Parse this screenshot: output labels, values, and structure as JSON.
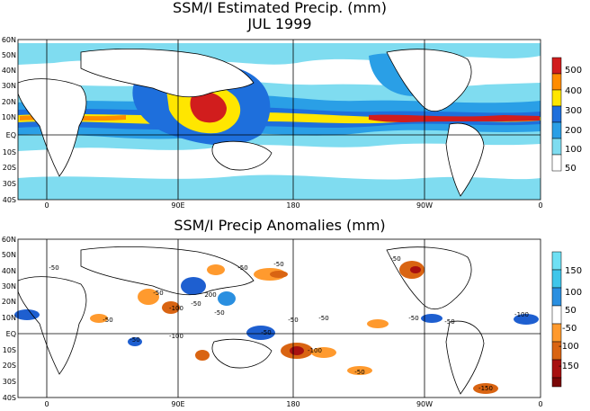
{
  "top_panel": {
    "title_line1": "SSM/I Estimated Precip. (mm)",
    "title_line2": "JUL 1999",
    "lat_labels": [
      "60N",
      "50N",
      "40N",
      "30N",
      "20N",
      "10N",
      "EQ",
      "10S",
      "20S",
      "30S",
      "40S"
    ],
    "lon_labels": [
      "0",
      "90E",
      "180",
      "90W",
      "0"
    ],
    "legend": [
      {
        "label": "500",
        "color": "#d11d1d"
      },
      {
        "label": "400",
        "color": "#ff8c00"
      },
      {
        "label": "300",
        "color": "#ffe600"
      },
      {
        "label": "200",
        "color": "#1e6fdc"
      },
      {
        "label": "100",
        "color": "#2a9fe6"
      },
      {
        "label": "50",
        "color": "#7fdcf0"
      }
    ],
    "legend_bottom_color": "#ffffff"
  },
  "bottom_panel": {
    "title": "SSM/I Precip Anomalies (mm)",
    "lat_labels": [
      "60N",
      "50N",
      "40N",
      "30N",
      "20N",
      "10N",
      "EQ",
      "10S",
      "20S",
      "30S",
      "40S"
    ],
    "lon_labels": [
      "0",
      "90E",
      "180",
      "90W",
      "0"
    ],
    "legend": [
      {
        "label": "150",
        "color": "#3fc6ea"
      },
      {
        "label": "100",
        "color": "#2a8fe0"
      },
      {
        "label": "50",
        "color": "#1e5fd0"
      },
      {
        "label": "-50",
        "color": "#ff9a2e"
      },
      {
        "label": "-100",
        "color": "#d96412"
      },
      {
        "label": "-150",
        "color": "#a81010"
      }
    ],
    "legend_top_color": "#6fe0f4",
    "legend_bottom_color": "#7a0808",
    "contour_labels": [
      "-50",
      "-50",
      "-50",
      "-100",
      "-50",
      "-50",
      "200",
      "-50",
      "-100",
      "-50",
      "-50",
      "-50",
      "-100",
      "-50",
      "-50",
      "-50",
      "-50",
      "-150",
      "-100",
      "-50",
      "-50"
    ]
  }
}
